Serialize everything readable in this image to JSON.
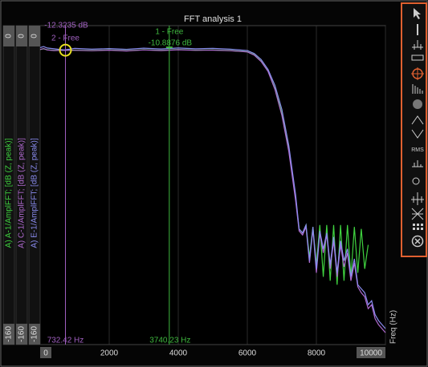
{
  "chart_data": {
    "type": "line",
    "title": "FFT analysis 1",
    "x_label": "Freq (Hz)",
    "x": [
      0,
      100,
      200,
      400,
      700,
      1000,
      1500,
      2000,
      2500,
      3000,
      3500,
      4000,
      4500,
      5000,
      5500,
      6000,
      6200,
      6400,
      6600,
      6800,
      7000,
      7200,
      7400,
      7500,
      7600,
      7700,
      7800,
      7900,
      8000,
      8100,
      8200,
      8300,
      8400,
      8500,
      8600,
      8700,
      8800,
      8900,
      9000,
      9100,
      9200,
      9300,
      9400,
      9500,
      9600,
      9700,
      9800,
      9900,
      10000
    ],
    "series": [
      {
        "name": "A) A-1/AmplFFT; [dB (Z, peak)]",
        "color": "#3fd23f",
        "values": [
          -12,
          -11.6,
          -12.1,
          -12.4,
          -12.3,
          -12.3,
          -12.5,
          -12.2,
          -12.6,
          -12.1,
          -12.4,
          -12.0,
          -12.3,
          -12.2,
          -12.5,
          -13.1,
          -14.6,
          -17.8,
          -22.8,
          -31.5,
          -44,
          -62,
          -87,
          -102,
          -104,
          -100,
          -116,
          -101,
          -120,
          -100,
          -126,
          -100,
          -128,
          -100,
          -130,
          -100,
          -128,
          -100,
          -126,
          -101,
          -124,
          -102,
          -122,
          -110,
          null,
          null,
          null,
          null,
          null
        ]
      },
      {
        "name": "A) C-1/AmplFFT; [dB (Z, peak)]",
        "color": "#b06ad0",
        "values": [
          -12,
          -11.5,
          -12.2,
          -12.5,
          -12.3,
          -12.4,
          -12.6,
          -12.3,
          -12.7,
          -12.2,
          -12.5,
          -12.1,
          -12.4,
          -12.3,
          -12.6,
          -13.2,
          -14.8,
          -18,
          -23,
          -32,
          -45,
          -63,
          -88,
          -103,
          -105,
          -101,
          -119,
          -102,
          -124,
          -104,
          -114,
          -105,
          -122,
          -108,
          -126,
          -110,
          -121,
          -114,
          -128,
          -119,
          -131,
          -134,
          -136,
          -142,
          -140,
          -147,
          -150,
          -152,
          -154
        ]
      },
      {
        "name": "A) E-1/AmplFFT; [dB (Z, peak)]",
        "color": "#8a8cf0",
        "values": [
          -11,
          -10.5,
          -11.2,
          -11.6,
          -12.2,
          -11.4,
          -11.8,
          -11.5,
          -11.9,
          -11.3,
          -11.7,
          -11.2,
          -11.6,
          -11.4,
          -11.8,
          -12.5,
          -14,
          -17,
          -22,
          -30,
          -42,
          -60,
          -85,
          -102,
          -104,
          -100,
          -118,
          -101,
          -122,
          -103,
          -112,
          -104,
          -120,
          -106,
          -124,
          -108,
          -118,
          -112,
          -126,
          -117,
          -130,
          -132,
          -134,
          -140,
          -138,
          -145,
          -148,
          -150,
          -152
        ]
      }
    ],
    "xlim": [
      0,
      10000
    ],
    "xticks": [
      0,
      2000,
      4000,
      6000,
      8000,
      10000
    ],
    "ylim": [
      -160,
      0
    ],
    "yticks": [
      -160,
      0
    ],
    "cursors": [
      {
        "name": "1 - Free",
        "x": 3740.23,
        "x_label": "3740.23 Hz",
        "value": -10.8876,
        "value_label": "-10.8876 dB",
        "color": "#3fb83f"
      },
      {
        "name": "2 - Free",
        "x": 732.42,
        "x_label": "732.42 Hz",
        "value": -12.3235,
        "value_label": "-12.3235 dB",
        "color": "#a060c0",
        "marker_color": "#e8e020"
      }
    ]
  },
  "toolbar": {
    "rms_label": "RMS"
  }
}
